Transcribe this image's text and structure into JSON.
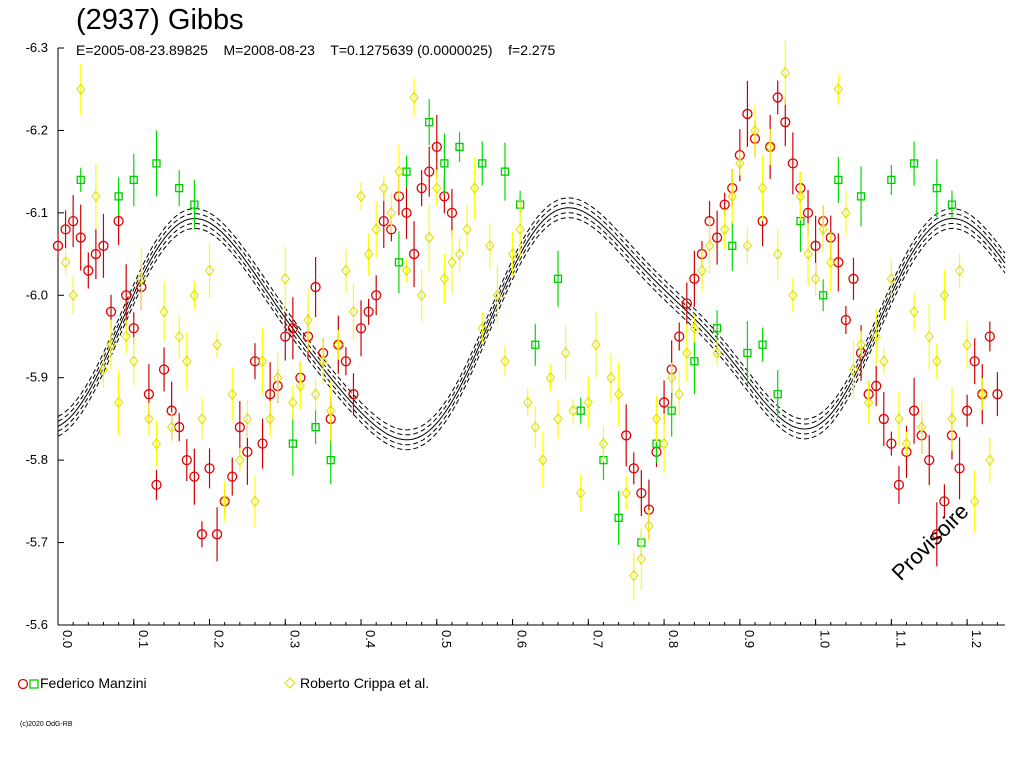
{
  "title": "(2937) Gibbs",
  "params": {
    "epoch": "E=2005-08-23.89825",
    "mid": "M=2008-08-23",
    "period": "T=0.1275639 (0.0000025)",
    "f": "f=2.275"
  },
  "watermark": "Provisoire",
  "copyright": "(c)2020 OdG-RB",
  "colors": {
    "manzini_a": "#e00000",
    "manzini_b": "#00cc00",
    "crippa": "#ffff00",
    "fit": "#000000"
  },
  "chart_data": {
    "type": "scatter",
    "xlim": [
      0,
      1.25
    ],
    "ylim": [
      -6.3,
      -5.6
    ],
    "y_reversed": true,
    "xticks": [
      "0.0",
      "0.1",
      "0.2",
      "0.3",
      "0.4",
      "0.5",
      "0.6",
      "0.7",
      "0.8",
      "0.9",
      "1.0",
      "1.1",
      "1.2"
    ],
    "yticks": [
      "-6.3",
      "-6.2",
      "-6.1",
      "-6.0",
      "-5.9",
      "-5.8",
      "-5.7",
      "-5.6"
    ],
    "legend": [
      {
        "name": "Federico Manzini",
        "icons": [
          "red-circle",
          "green-square"
        ]
      },
      {
        "name": "Roberto Crippa et al.",
        "icons": [
          "yellow-diamond"
        ]
      }
    ],
    "series": [
      {
        "key": "manzini_red",
        "marker": "circle",
        "points": [
          [
            0.0,
            -6.06
          ],
          [
            0.01,
            -6.08
          ],
          [
            0.02,
            -6.09
          ],
          [
            0.03,
            -6.07
          ],
          [
            0.04,
            -6.03
          ],
          [
            0.05,
            -6.05
          ],
          [
            0.06,
            -6.06
          ],
          [
            0.07,
            -5.98
          ],
          [
            0.08,
            -6.09
          ],
          [
            0.09,
            -6.0
          ],
          [
            0.1,
            -5.96
          ],
          [
            0.11,
            -6.01
          ],
          [
            0.12,
            -5.88
          ],
          [
            0.13,
            -5.77
          ],
          [
            0.14,
            -5.91
          ],
          [
            0.15,
            -5.86
          ],
          [
            0.16,
            -5.84
          ],
          [
            0.17,
            -5.8
          ],
          [
            0.18,
            -5.78
          ],
          [
            0.19,
            -5.71
          ],
          [
            0.2,
            -5.79
          ],
          [
            0.21,
            -5.71
          ],
          [
            0.22,
            -5.75
          ],
          [
            0.23,
            -5.78
          ],
          [
            0.24,
            -5.84
          ],
          [
            0.25,
            -5.81
          ],
          [
            0.26,
            -5.92
          ],
          [
            0.27,
            -5.82
          ],
          [
            0.28,
            -5.88
          ],
          [
            0.29,
            -5.89
          ],
          [
            0.3,
            -5.95
          ],
          [
            0.31,
            -5.96
          ],
          [
            0.32,
            -5.9
          ],
          [
            0.33,
            -5.95
          ],
          [
            0.34,
            -6.01
          ],
          [
            0.35,
            -5.93
          ],
          [
            0.36,
            -5.85
          ],
          [
            0.37,
            -5.94
          ],
          [
            0.38,
            -5.92
          ],
          [
            0.39,
            -5.88
          ],
          [
            0.4,
            -5.96
          ],
          [
            0.41,
            -5.98
          ],
          [
            0.42,
            -6.0
          ],
          [
            0.43,
            -6.09
          ],
          [
            0.44,
            -6.08
          ],
          [
            0.45,
            -6.12
          ],
          [
            0.46,
            -6.1
          ],
          [
            0.47,
            -6.05
          ],
          [
            0.48,
            -6.13
          ],
          [
            0.49,
            -6.15
          ],
          [
            0.5,
            -6.18
          ],
          [
            0.51,
            -6.12
          ],
          [
            0.52,
            -6.1
          ],
          [
            0.75,
            -5.83
          ],
          [
            0.76,
            -5.79
          ],
          [
            0.77,
            -5.76
          ],
          [
            0.78,
            -5.74
          ],
          [
            0.79,
            -5.81
          ],
          [
            0.8,
            -5.87
          ],
          [
            0.81,
            -5.91
          ],
          [
            0.82,
            -5.95
          ],
          [
            0.83,
            -5.99
          ],
          [
            0.84,
            -6.02
          ],
          [
            0.85,
            -6.05
          ],
          [
            0.86,
            -6.09
          ],
          [
            0.87,
            -6.07
          ],
          [
            0.88,
            -6.11
          ],
          [
            0.89,
            -6.13
          ],
          [
            0.9,
            -6.17
          ],
          [
            0.91,
            -6.22
          ],
          [
            0.92,
            -6.19
          ],
          [
            0.93,
            -6.09
          ],
          [
            0.94,
            -6.18
          ],
          [
            0.95,
            -6.24
          ],
          [
            0.96,
            -6.21
          ],
          [
            0.97,
            -6.16
          ],
          [
            0.98,
            -6.13
          ],
          [
            0.99,
            -6.1
          ],
          [
            1.0,
            -6.06
          ],
          [
            1.01,
            -6.09
          ],
          [
            1.02,
            -6.07
          ],
          [
            1.03,
            -6.04
          ],
          [
            1.04,
            -5.97
          ],
          [
            1.05,
            -6.02
          ],
          [
            1.06,
            -5.93
          ],
          [
            1.07,
            -5.88
          ],
          [
            1.08,
            -5.89
          ],
          [
            1.09,
            -5.85
          ],
          [
            1.1,
            -5.82
          ],
          [
            1.11,
            -5.77
          ],
          [
            1.12,
            -5.81
          ],
          [
            1.13,
            -5.86
          ],
          [
            1.14,
            -5.83
          ],
          [
            1.15,
            -5.8
          ],
          [
            1.16,
            -5.71
          ],
          [
            1.17,
            -5.75
          ],
          [
            1.18,
            -5.83
          ],
          [
            1.19,
            -5.79
          ],
          [
            1.2,
            -5.86
          ],
          [
            1.21,
            -5.92
          ],
          [
            1.22,
            -5.88
          ],
          [
            1.23,
            -5.95
          ],
          [
            1.24,
            -5.88
          ]
        ]
      },
      {
        "key": "manzini_green",
        "marker": "square",
        "points": [
          [
            0.03,
            -6.14
          ],
          [
            0.08,
            -6.12
          ],
          [
            0.1,
            -6.14
          ],
          [
            0.13,
            -6.16
          ],
          [
            0.16,
            -6.13
          ],
          [
            0.18,
            -6.11
          ],
          [
            0.31,
            -5.82
          ],
          [
            0.34,
            -5.84
          ],
          [
            0.36,
            -5.8
          ],
          [
            0.45,
            -6.04
          ],
          [
            0.46,
            -6.15
          ],
          [
            0.49,
            -6.21
          ],
          [
            0.51,
            -6.16
          ],
          [
            0.53,
            -6.18
          ],
          [
            0.56,
            -6.16
          ],
          [
            0.59,
            -6.15
          ],
          [
            0.61,
            -6.11
          ],
          [
            0.63,
            -5.94
          ],
          [
            0.66,
            -6.02
          ],
          [
            0.69,
            -5.86
          ],
          [
            0.72,
            -5.8
          ],
          [
            0.74,
            -5.73
          ],
          [
            0.77,
            -5.7
          ],
          [
            0.79,
            -5.82
          ],
          [
            0.81,
            -5.86
          ],
          [
            0.84,
            -5.92
          ],
          [
            0.87,
            -5.96
          ],
          [
            0.89,
            -6.06
          ],
          [
            0.91,
            -5.93
          ],
          [
            0.93,
            -5.94
          ],
          [
            0.95,
            -5.88
          ],
          [
            0.98,
            -6.09
          ],
          [
            1.01,
            -6.0
          ],
          [
            1.03,
            -6.14
          ],
          [
            1.06,
            -6.12
          ],
          [
            1.1,
            -6.14
          ],
          [
            1.13,
            -6.16
          ],
          [
            1.16,
            -6.13
          ],
          [
            1.18,
            -6.11
          ]
        ]
      },
      {
        "key": "crippa",
        "marker": "diamond",
        "points": [
          [
            0.01,
            -6.04
          ],
          [
            0.02,
            -6.0
          ],
          [
            0.03,
            -6.25
          ],
          [
            0.05,
            -6.12
          ],
          [
            0.06,
            -5.91
          ],
          [
            0.07,
            -5.94
          ],
          [
            0.08,
            -5.87
          ],
          [
            0.09,
            -5.95
          ],
          [
            0.1,
            -5.92
          ],
          [
            0.11,
            -6.02
          ],
          [
            0.12,
            -5.85
          ],
          [
            0.13,
            -5.82
          ],
          [
            0.14,
            -5.98
          ],
          [
            0.15,
            -5.84
          ],
          [
            0.16,
            -5.95
          ],
          [
            0.17,
            -5.92
          ],
          [
            0.18,
            -6.0
          ],
          [
            0.19,
            -5.85
          ],
          [
            0.2,
            -6.03
          ],
          [
            0.21,
            -5.94
          ],
          [
            0.22,
            -5.75
          ],
          [
            0.23,
            -5.88
          ],
          [
            0.24,
            -5.8
          ],
          [
            0.25,
            -5.85
          ],
          [
            0.26,
            -5.75
          ],
          [
            0.27,
            -5.92
          ],
          [
            0.28,
            -5.85
          ],
          [
            0.29,
            -5.9
          ],
          [
            0.3,
            -6.02
          ],
          [
            0.31,
            -5.87
          ],
          [
            0.32,
            -5.89
          ],
          [
            0.33,
            -5.97
          ],
          [
            0.34,
            -5.88
          ],
          [
            0.35,
            -5.92
          ],
          [
            0.36,
            -5.86
          ],
          [
            0.37,
            -5.94
          ],
          [
            0.38,
            -6.03
          ],
          [
            0.39,
            -5.98
          ],
          [
            0.4,
            -6.12
          ],
          [
            0.41,
            -6.05
          ],
          [
            0.42,
            -6.08
          ],
          [
            0.43,
            -6.13
          ],
          [
            0.44,
            -6.1
          ],
          [
            0.45,
            -6.15
          ],
          [
            0.46,
            -6.03
          ],
          [
            0.47,
            -6.24
          ],
          [
            0.48,
            -6.0
          ],
          [
            0.49,
            -6.07
          ],
          [
            0.5,
            -6.13
          ],
          [
            0.51,
            -6.02
          ],
          [
            0.52,
            -6.04
          ],
          [
            0.53,
            -6.05
          ],
          [
            0.54,
            -6.08
          ],
          [
            0.55,
            -6.13
          ],
          [
            0.56,
            -5.96
          ],
          [
            0.57,
            -6.06
          ],
          [
            0.58,
            -6.0
          ],
          [
            0.59,
            -5.92
          ],
          [
            0.6,
            -6.05
          ],
          [
            0.61,
            -6.08
          ],
          [
            0.62,
            -5.87
          ],
          [
            0.63,
            -5.84
          ],
          [
            0.64,
            -5.8
          ],
          [
            0.65,
            -5.9
          ],
          [
            0.66,
            -5.85
          ],
          [
            0.67,
            -5.93
          ],
          [
            0.68,
            -5.86
          ],
          [
            0.69,
            -5.76
          ],
          [
            0.7,
            -5.87
          ],
          [
            0.71,
            -5.94
          ],
          [
            0.72,
            -5.82
          ],
          [
            0.73,
            -5.9
          ],
          [
            0.74,
            -5.88
          ],
          [
            0.75,
            -5.76
          ],
          [
            0.76,
            -5.66
          ],
          [
            0.77,
            -5.68
          ],
          [
            0.78,
            -5.72
          ],
          [
            0.79,
            -5.85
          ],
          [
            0.8,
            -5.82
          ],
          [
            0.81,
            -5.9
          ],
          [
            0.82,
            -5.88
          ],
          [
            0.83,
            -5.93
          ],
          [
            0.84,
            -5.96
          ],
          [
            0.85,
            -6.03
          ],
          [
            0.86,
            -6.06
          ],
          [
            0.87,
            -5.93
          ],
          [
            0.88,
            -6.08
          ],
          [
            0.89,
            -6.12
          ],
          [
            0.9,
            -6.16
          ],
          [
            0.91,
            -6.06
          ],
          [
            0.92,
            -6.2
          ],
          [
            0.93,
            -6.13
          ],
          [
            0.94,
            -6.18
          ],
          [
            0.95,
            -6.05
          ],
          [
            0.96,
            -6.27
          ],
          [
            0.97,
            -6.0
          ],
          [
            0.98,
            -6.12
          ],
          [
            0.99,
            -6.05
          ],
          [
            1.0,
            -6.02
          ],
          [
            1.01,
            -6.08
          ],
          [
            1.02,
            -6.04
          ],
          [
            1.03,
            -6.25
          ],
          [
            1.04,
            -6.1
          ],
          [
            1.05,
            -5.91
          ],
          [
            1.06,
            -5.94
          ],
          [
            1.07,
            -5.87
          ],
          [
            1.08,
            -5.95
          ],
          [
            1.09,
            -5.92
          ],
          [
            1.1,
            -6.02
          ],
          [
            1.11,
            -5.85
          ],
          [
            1.12,
            -5.82
          ],
          [
            1.13,
            -5.98
          ],
          [
            1.14,
            -5.84
          ],
          [
            1.15,
            -5.95
          ],
          [
            1.16,
            -5.92
          ],
          [
            1.17,
            -6.0
          ],
          [
            1.18,
            -5.85
          ],
          [
            1.19,
            -6.03
          ],
          [
            1.2,
            -5.94
          ],
          [
            1.21,
            -5.75
          ],
          [
            1.22,
            -5.88
          ],
          [
            1.23,
            -5.8
          ]
        ]
      }
    ],
    "fit": {
      "offset": -5.965,
      "harmonics": [
        {
          "n": 1,
          "a": -0.004,
          "b": 0.018
        },
        {
          "n": 2,
          "a": 0.102,
          "b": -0.075
        },
        {
          "n": 3,
          "a": 0.006,
          "b": 0.01
        },
        {
          "n": 4,
          "a": 0.02,
          "b": 0.008
        }
      ],
      "band": 0.012
    }
  }
}
